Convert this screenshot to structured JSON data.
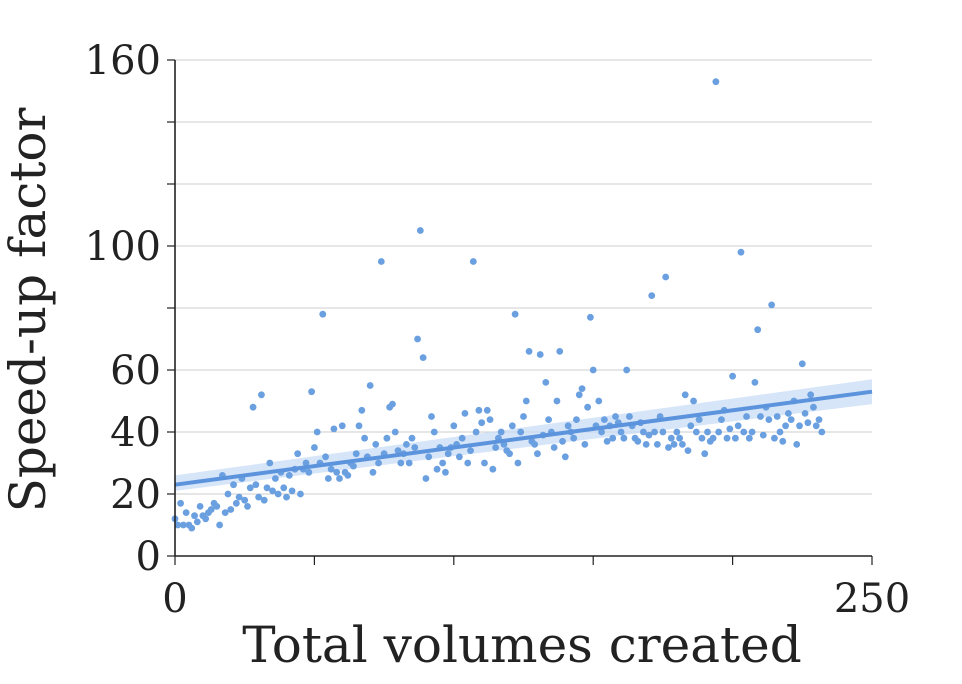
{
  "chart_data": {
    "type": "scatter",
    "xlabel": "Total volumes created",
    "ylabel": "Speed-up factor",
    "xlim": [
      0,
      250
    ],
    "ylim": [
      0,
      160
    ],
    "x_ticks": [
      0,
      50,
      100,
      150,
      200,
      250
    ],
    "x_tick_labels": [
      "0",
      "",
      "",
      "",
      "",
      "250"
    ],
    "y_ticks": [
      0,
      20,
      40,
      60,
      80,
      100,
      120,
      140,
      160
    ],
    "y_tick_labels": [
      "0",
      "20",
      "40",
      "60",
      "",
      "100",
      "",
      "",
      "160"
    ],
    "grid": true,
    "colors": {
      "points": "#6a9fe0",
      "trend": "#5b93dd",
      "band": "#c9dcf5",
      "axis": "#222222",
      "grid": "#cccccc"
    },
    "trend_line": {
      "x": [
        0,
        250
      ],
      "y": [
        23,
        53
      ]
    },
    "confidence_band": {
      "x": [
        0,
        250
      ],
      "lower": [
        21,
        49
      ],
      "upper": [
        26,
        57
      ]
    },
    "series": [
      {
        "name": "runs",
        "points": [
          [
            0,
            12
          ],
          [
            1,
            10
          ],
          [
            2,
            17
          ],
          [
            3,
            10
          ],
          [
            4,
            14
          ],
          [
            5,
            10
          ],
          [
            6,
            9
          ],
          [
            7,
            13
          ],
          [
            8,
            11
          ],
          [
            9,
            16
          ],
          [
            10,
            13
          ],
          [
            11,
            12
          ],
          [
            12,
            14
          ],
          [
            13,
            15
          ],
          [
            14,
            17
          ],
          [
            15,
            16
          ],
          [
            16,
            10
          ],
          [
            17,
            26
          ],
          [
            18,
            14
          ],
          [
            19,
            20
          ],
          [
            20,
            15
          ],
          [
            21,
            23
          ],
          [
            22,
            17
          ],
          [
            23,
            19
          ],
          [
            24,
            25
          ],
          [
            25,
            18
          ],
          [
            26,
            16
          ],
          [
            27,
            22
          ],
          [
            28,
            48
          ],
          [
            29,
            23
          ],
          [
            30,
            19
          ],
          [
            31,
            52
          ],
          [
            32,
            18
          ],
          [
            33,
            22
          ],
          [
            34,
            30
          ],
          [
            35,
            21
          ],
          [
            36,
            25
          ],
          [
            37,
            20
          ],
          [
            38,
            27
          ],
          [
            39,
            22
          ],
          [
            40,
            19
          ],
          [
            41,
            26
          ],
          [
            42,
            21
          ],
          [
            43,
            28
          ],
          [
            44,
            33
          ],
          [
            45,
            20
          ],
          [
            46,
            28
          ],
          [
            47,
            30
          ],
          [
            48,
            27
          ],
          [
            49,
            53
          ],
          [
            50,
            35
          ],
          [
            51,
            40
          ],
          [
            52,
            30
          ],
          [
            53,
            78
          ],
          [
            54,
            32
          ],
          [
            55,
            25
          ],
          [
            56,
            28
          ],
          [
            57,
            41
          ],
          [
            58,
            27
          ],
          [
            59,
            25
          ],
          [
            60,
            42
          ],
          [
            61,
            27
          ],
          [
            62,
            26
          ],
          [
            63,
            30
          ],
          [
            64,
            29
          ],
          [
            65,
            33
          ],
          [
            66,
            42
          ],
          [
            67,
            47
          ],
          [
            68,
            38
          ],
          [
            69,
            32
          ],
          [
            70,
            55
          ],
          [
            71,
            27
          ],
          [
            72,
            36
          ],
          [
            73,
            30
          ],
          [
            74,
            95
          ],
          [
            75,
            33
          ],
          [
            76,
            38
          ],
          [
            77,
            48
          ],
          [
            78,
            49
          ],
          [
            79,
            40
          ],
          [
            80,
            34
          ],
          [
            81,
            30
          ],
          [
            82,
            33
          ],
          [
            83,
            36
          ],
          [
            84,
            30
          ],
          [
            85,
            38
          ],
          [
            86,
            35
          ],
          [
            87,
            70
          ],
          [
            88,
            105
          ],
          [
            89,
            64
          ],
          [
            90,
            25
          ],
          [
            91,
            32
          ],
          [
            92,
            45
          ],
          [
            93,
            40
          ],
          [
            94,
            28
          ],
          [
            95,
            35
          ],
          [
            96,
            30
          ],
          [
            97,
            27
          ],
          [
            98,
            33
          ],
          [
            99,
            35
          ],
          [
            100,
            42
          ],
          [
            101,
            36
          ],
          [
            102,
            32
          ],
          [
            103,
            38
          ],
          [
            104,
            46
          ],
          [
            105,
            30
          ],
          [
            106,
            34
          ],
          [
            107,
            95
          ],
          [
            108,
            40
          ],
          [
            109,
            47
          ],
          [
            110,
            43
          ],
          [
            111,
            30
          ],
          [
            112,
            47
          ],
          [
            113,
            44
          ],
          [
            114,
            28
          ],
          [
            115,
            35
          ],
          [
            116,
            38
          ],
          [
            117,
            40
          ],
          [
            118,
            36
          ],
          [
            119,
            34
          ],
          [
            120,
            33
          ],
          [
            121,
            42
          ],
          [
            122,
            78
          ],
          [
            123,
            30
          ],
          [
            124,
            40
          ],
          [
            125,
            45
          ],
          [
            126,
            50
          ],
          [
            127,
            66
          ],
          [
            128,
            37
          ],
          [
            129,
            36
          ],
          [
            130,
            33
          ],
          [
            131,
            65
          ],
          [
            132,
            39
          ],
          [
            133,
            56
          ],
          [
            134,
            44
          ],
          [
            135,
            40
          ],
          [
            136,
            35
          ],
          [
            137,
            50
          ],
          [
            138,
            66
          ],
          [
            139,
            37
          ],
          [
            140,
            32
          ],
          [
            141,
            42
          ],
          [
            142,
            40
          ],
          [
            143,
            38
          ],
          [
            144,
            44
          ],
          [
            145,
            52
          ],
          [
            146,
            54
          ],
          [
            147,
            36
          ],
          [
            148,
            48
          ],
          [
            149,
            77
          ],
          [
            150,
            60
          ],
          [
            151,
            42
          ],
          [
            152,
            50
          ],
          [
            153,
            40
          ],
          [
            154,
            44
          ],
          [
            155,
            37
          ],
          [
            156,
            42
          ],
          [
            157,
            38
          ],
          [
            158,
            45
          ],
          [
            159,
            43
          ],
          [
            160,
            40
          ],
          [
            161,
            38
          ],
          [
            162,
            60
          ],
          [
            163,
            45
          ],
          [
            164,
            42
          ],
          [
            165,
            38
          ],
          [
            166,
            37
          ],
          [
            167,
            43
          ],
          [
            168,
            40
          ],
          [
            169,
            36
          ],
          [
            170,
            39
          ],
          [
            171,
            84
          ],
          [
            172,
            40
          ],
          [
            173,
            36
          ],
          [
            174,
            45
          ],
          [
            175,
            40
          ],
          [
            176,
            90
          ],
          [
            177,
            35
          ],
          [
            178,
            38
          ],
          [
            179,
            36
          ],
          [
            180,
            40
          ],
          [
            181,
            38
          ],
          [
            182,
            36
          ],
          [
            183,
            52
          ],
          [
            184,
            34
          ],
          [
            185,
            42
          ],
          [
            186,
            50
          ],
          [
            187,
            40
          ],
          [
            188,
            44
          ],
          [
            189,
            38
          ],
          [
            190,
            33
          ],
          [
            191,
            40
          ],
          [
            192,
            37
          ],
          [
            193,
            38
          ],
          [
            194,
            153
          ],
          [
            195,
            40
          ],
          [
            196,
            44
          ],
          [
            197,
            47
          ],
          [
            198,
            38
          ],
          [
            199,
            41
          ],
          [
            200,
            58
          ],
          [
            201,
            38
          ],
          [
            202,
            42
          ],
          [
            203,
            98
          ],
          [
            204,
            40
          ],
          [
            205,
            45
          ],
          [
            206,
            38
          ],
          [
            207,
            40
          ],
          [
            208,
            56
          ],
          [
            209,
            73
          ],
          [
            210,
            45
          ],
          [
            211,
            39
          ],
          [
            212,
            48
          ],
          [
            213,
            44
          ],
          [
            214,
            81
          ],
          [
            215,
            38
          ],
          [
            216,
            45
          ],
          [
            217,
            40
          ],
          [
            218,
            37
          ],
          [
            219,
            42
          ],
          [
            220,
            46
          ],
          [
            221,
            44
          ],
          [
            222,
            50
          ],
          [
            223,
            36
          ],
          [
            224,
            42
          ],
          [
            225,
            62
          ],
          [
            226,
            46
          ],
          [
            227,
            43
          ],
          [
            228,
            52
          ],
          [
            229,
            48
          ],
          [
            230,
            42
          ],
          [
            231,
            44
          ],
          [
            232,
            40
          ]
        ]
      }
    ]
  }
}
